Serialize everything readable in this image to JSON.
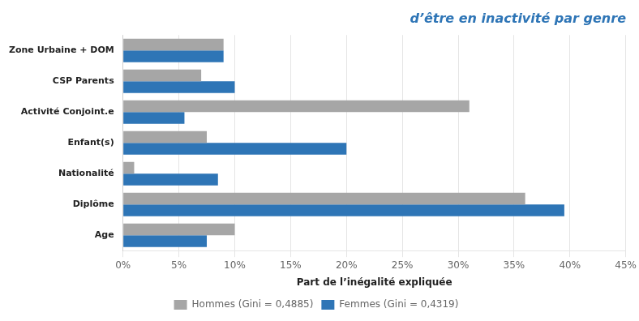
{
  "chart_data": {
    "type": "bar",
    "orientation": "horizontal",
    "title": "d’être en inactivité par genre",
    "xlabel": "Part de l’inégalité expliquée",
    "categories": [
      "Age",
      "Diplôme",
      "Nationalité",
      "Enfant(s)",
      "Activité Conjoint.e",
      "CSP Parents",
      "Zone Urbaine + DOM"
    ],
    "series": [
      {
        "name": "Hommes (Gini = 0,4885)",
        "color": "#a6a6a6",
        "values": [
          0.1,
          0.36,
          0.01,
          0.075,
          0.31,
          0.07,
          0.09
        ]
      },
      {
        "name": "Femmes (Gini = 0,4319)",
        "color": "#2e75b6",
        "values": [
          0.075,
          0.395,
          0.085,
          0.2,
          0.055,
          0.1,
          0.09
        ]
      }
    ],
    "xlim": [
      0,
      0.45
    ],
    "xticks": [
      {
        "value": 0.0,
        "label": "0%"
      },
      {
        "value": 0.05,
        "label": "5%"
      },
      {
        "value": 0.1,
        "label": "10%"
      },
      {
        "value": 0.15,
        "label": "15%"
      },
      {
        "value": 0.2,
        "label": "20%"
      },
      {
        "value": 0.25,
        "label": "25%"
      },
      {
        "value": 0.3,
        "label": "30%"
      },
      {
        "value": 0.35,
        "label": "35%"
      },
      {
        "value": 0.4,
        "label": "40%"
      },
      {
        "value": 0.45,
        "label": "45%"
      }
    ],
    "grid": true,
    "legend": "bottom"
  }
}
